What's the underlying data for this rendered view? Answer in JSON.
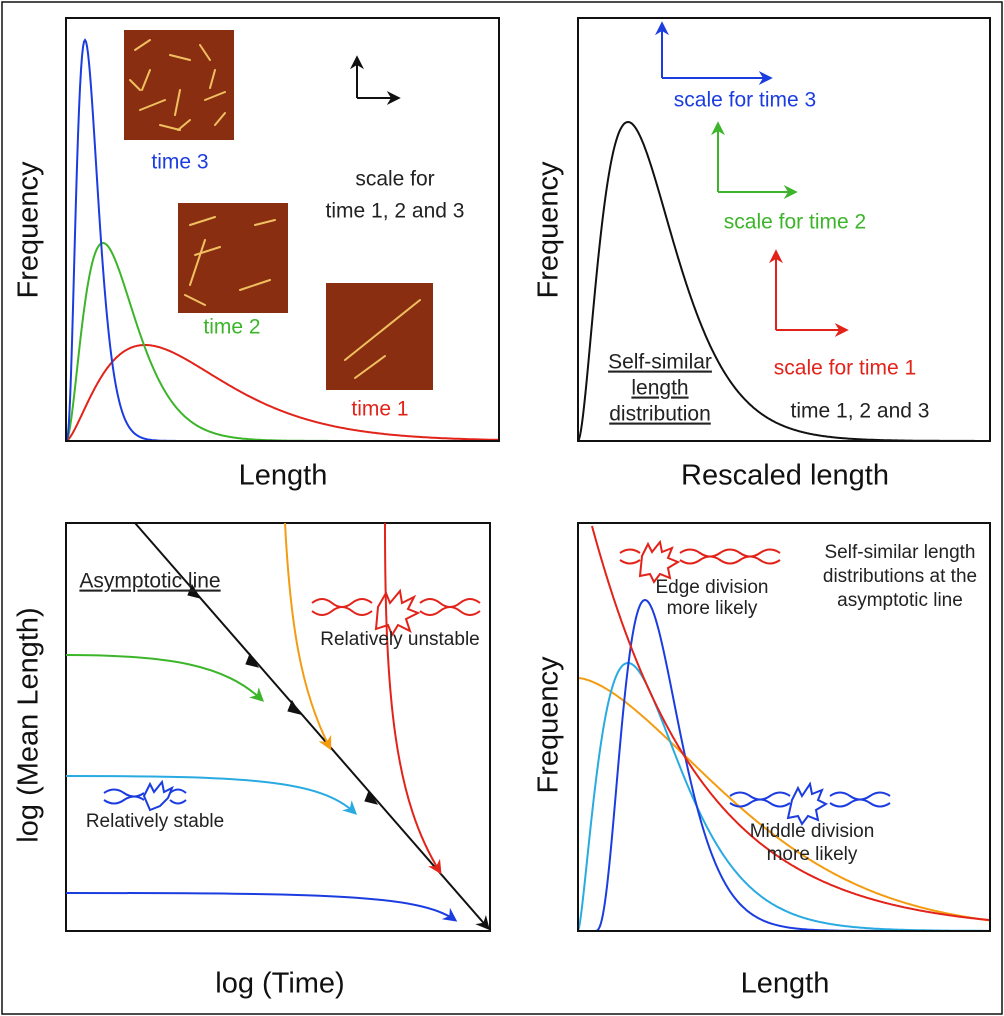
{
  "panels": [
    {
      "y_label": "Frequency",
      "x_label": "Length",
      "labels": [
        "time 3",
        "time 2",
        "time 1",
        "scale for",
        "time 1, 2 and 3"
      ]
    },
    {
      "y_label": "Frequency",
      "x_label": "Rescaled length",
      "labels": [
        "scale for time 3",
        "scale for time 2",
        "scale for time 1",
        "Self-similar",
        "length",
        "distribution",
        "time 1, 2 and 3"
      ]
    },
    {
      "y_label": "log (Mean Length)",
      "x_label": "log (Time)",
      "labels": [
        "Asymptotic line",
        "Relatively unstable",
        "Relatively stable"
      ]
    },
    {
      "y_label": "Frequency",
      "x_label": "Length",
      "labels": [
        "Edge division",
        "more likely",
        "Self-similar length",
        "distributions at the",
        "asymptotic line",
        "Middle division",
        "more likely"
      ]
    }
  ]
}
